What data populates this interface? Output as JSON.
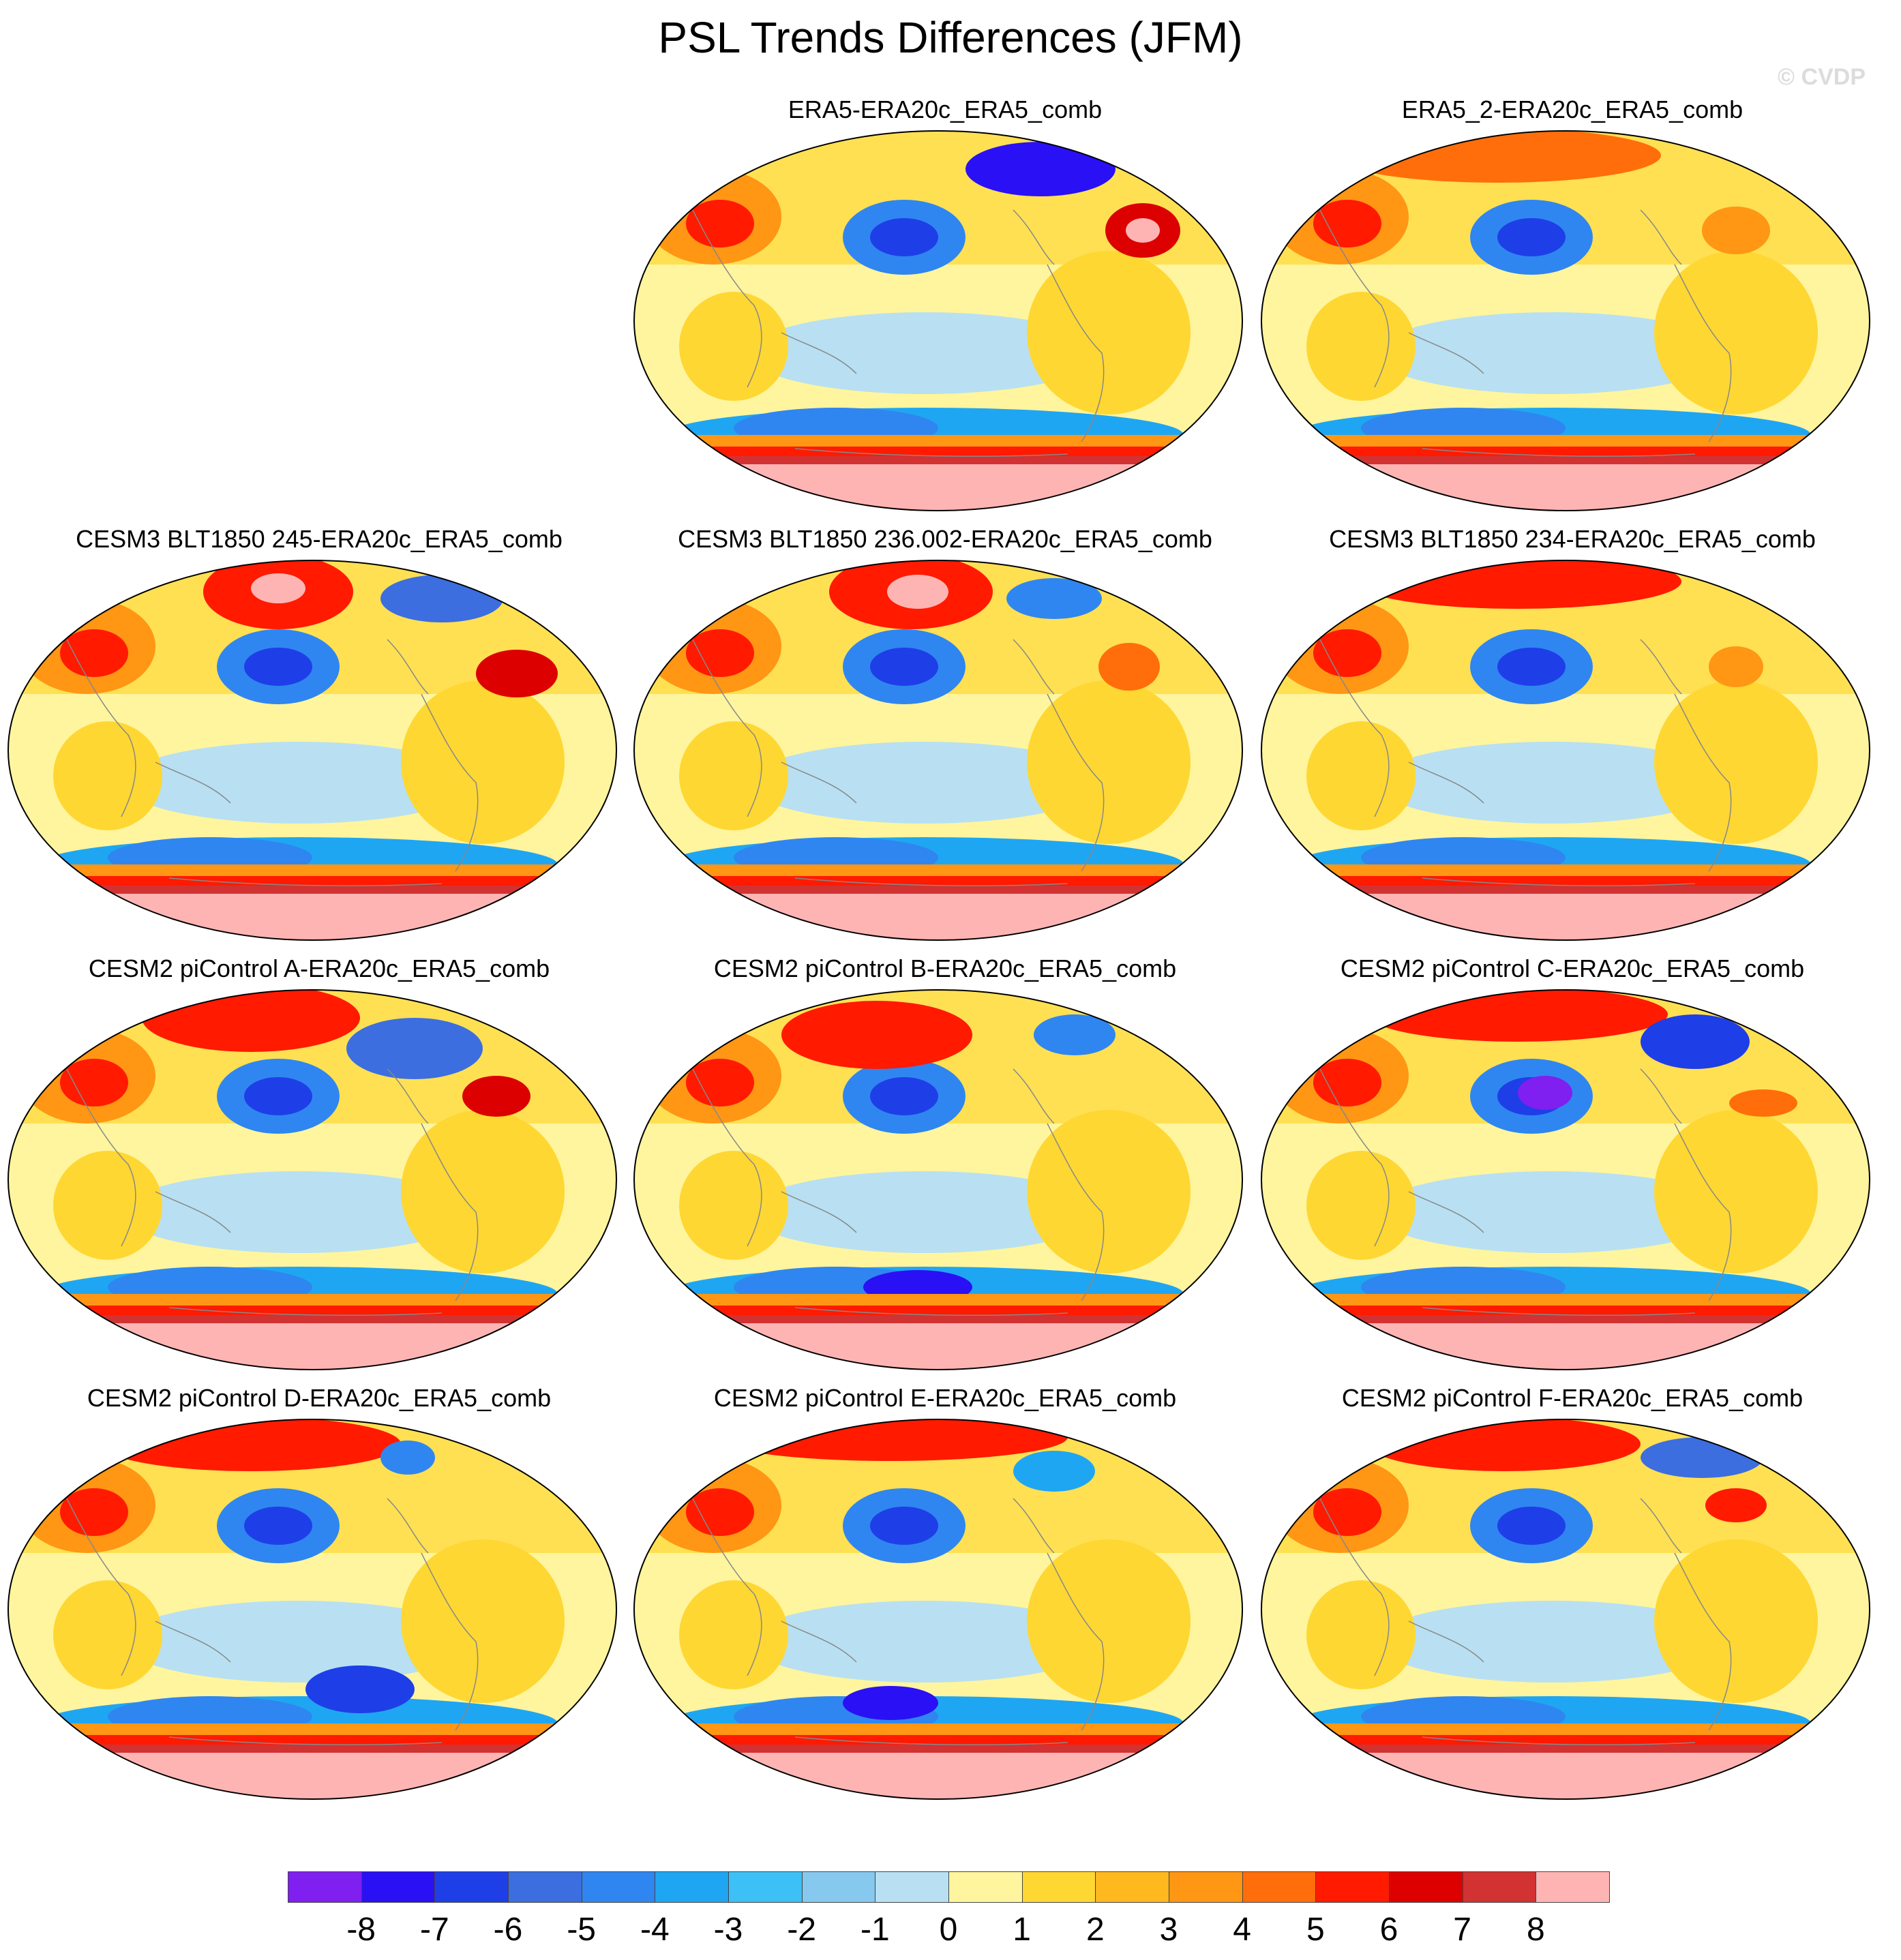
{
  "title": "PSL Trends Differences (JFM)",
  "watermark": "© CVDP",
  "panels": [
    {
      "label": "ERA5-ERA20c_ERA5_comb"
    },
    {
      "label": "ERA5_2-ERA20c_ERA5_comb"
    },
    {
      "label": "CESM3 BLT1850 245-ERA20c_ERA5_comb"
    },
    {
      "label": "CESM3 BLT1850 236.002-ERA20c_ERA5_comb"
    },
    {
      "label": "CESM3 BLT1850 234-ERA20c_ERA5_comb"
    },
    {
      "label": "CESM2 piControl A-ERA20c_ERA5_comb"
    },
    {
      "label": "CESM2 piControl B-ERA20c_ERA5_comb"
    },
    {
      "label": "CESM2 piControl C-ERA20c_ERA5_comb"
    },
    {
      "label": "CESM2 piControl D-ERA20c_ERA5_comb"
    },
    {
      "label": "CESM2 piControl E-ERA20c_ERA5_comb"
    },
    {
      "label": "CESM2 piControl F-ERA20c_ERA5_comb"
    }
  ],
  "colorbar": {
    "colors": [
      "#7f1ff0",
      "#2a10f5",
      "#1e3ee8",
      "#3c6ee0",
      "#2f86f0",
      "#1fa6f2",
      "#3cc0f5",
      "#87c8ee",
      "#b8e0f2",
      "#fff59e",
      "#ffd733",
      "#ffb81e",
      "#ff9614",
      "#ff6e0a",
      "#ff1a00",
      "#dc0000",
      "#d23232",
      "#ffb4b4"
    ],
    "labels": [
      "-8",
      "-7",
      "-6",
      "-5",
      "-4",
      "-3",
      "-2",
      "-1",
      "0",
      "1",
      "2",
      "3",
      "4",
      "5",
      "6",
      "7",
      "8"
    ]
  },
  "map_colors": {
    "ocean_bg": "#fff59e",
    "land_outline": "#888888",
    "frame": "#000000"
  }
}
